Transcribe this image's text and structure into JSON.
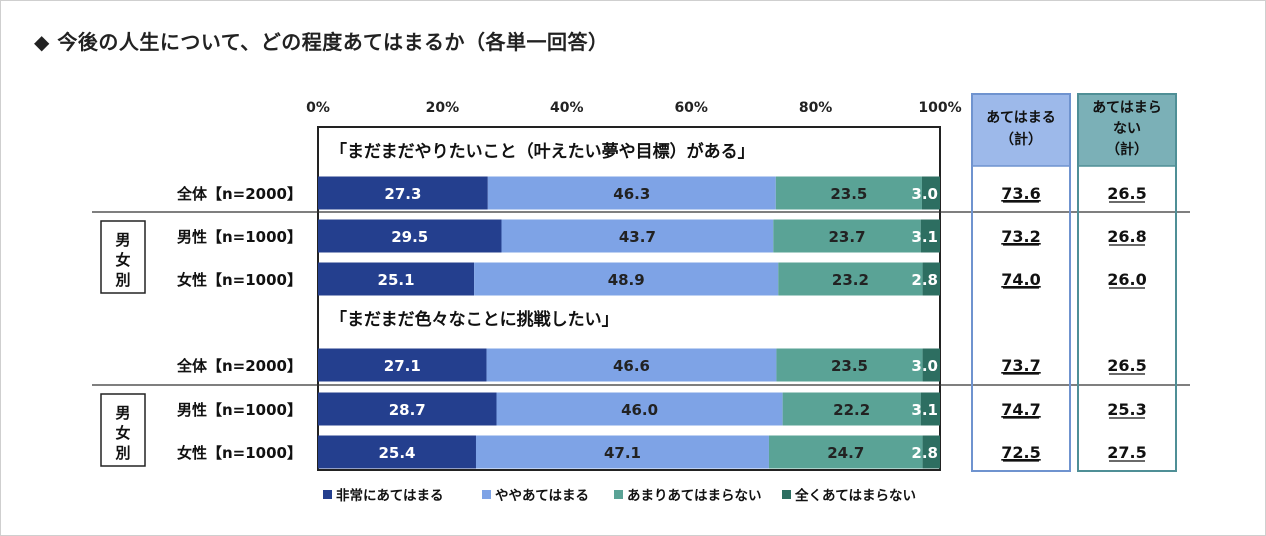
{
  "title": "◆ 今後の人生について、どの程度あてはまるか（各単一回答）",
  "chart_data": {
    "type": "bar",
    "orientation": "horizontal-stacked",
    "xlim": [
      0,
      100
    ],
    "x_ticks": [
      "0%",
      "20%",
      "40%",
      "60%",
      "80%",
      "100%"
    ],
    "segment_colors": [
      "#243f8e",
      "#7ea3e6",
      "#5aa396",
      "#2d6e61"
    ],
    "series": [
      {
        "name": "非常にあてはまる"
      },
      {
        "name": "ややあてはまる"
      },
      {
        "name": "あまりあてはまらない"
      },
      {
        "name": "全くあてはまらない"
      }
    ],
    "side_headers": {
      "agree": "あてはまる（計）",
      "disagree": "あてはまらない（計）",
      "agree_lines": [
        "あてはまる",
        "（計）"
      ],
      "disagree_lines": [
        "あてはまら",
        "ない",
        "（計）"
      ]
    },
    "group_label": "男女別",
    "group_label_chars": [
      "男",
      "女",
      "別"
    ],
    "groups": [
      {
        "heading": "「まだまだやりたいこと（叶えたい夢や目標）がある」",
        "rows": [
          {
            "label": "全体【n=2000】",
            "values": [
              27.3,
              46.3,
              23.5,
              3.0
            ],
            "labels": [
              "27.3",
              "46.3",
              "23.5",
              "3.0"
            ],
            "agree": "73.6",
            "disagree": "26.5"
          },
          {
            "label": "男性【n=1000】",
            "values": [
              29.5,
              43.7,
              23.7,
              3.1
            ],
            "labels": [
              "29.5",
              "43.7",
              "23.7",
              "3.1"
            ],
            "agree": "73.2",
            "disagree": "26.8"
          },
          {
            "label": "女性【n=1000】",
            "values": [
              25.1,
              48.9,
              23.2,
              2.8
            ],
            "labels": [
              "25.1",
              "48.9",
              "23.2",
              "2.8"
            ],
            "agree": "74.0",
            "disagree": "26.0"
          }
        ]
      },
      {
        "heading": "「まだまだ色々なことに挑戦したい」",
        "rows": [
          {
            "label": "全体【n=2000】",
            "values": [
              27.1,
              46.6,
              23.5,
              3.0
            ],
            "labels": [
              "27.1",
              "46.6",
              "23.5",
              "3.0"
            ],
            "agree": "73.7",
            "disagree": "26.5"
          },
          {
            "label": "男性【n=1000】",
            "values": [
              28.7,
              46.0,
              22.2,
              3.1
            ],
            "labels": [
              "28.7",
              "46.0",
              "22.2",
              "3.1"
            ],
            "agree": "74.7",
            "disagree": "25.3"
          },
          {
            "label": "女性【n=1000】",
            "values": [
              25.4,
              47.1,
              24.7,
              2.8
            ],
            "labels": [
              "25.4",
              "47.1",
              "24.7",
              "2.8"
            ],
            "agree": "72.5",
            "disagree": "27.5"
          }
        ]
      }
    ]
  }
}
